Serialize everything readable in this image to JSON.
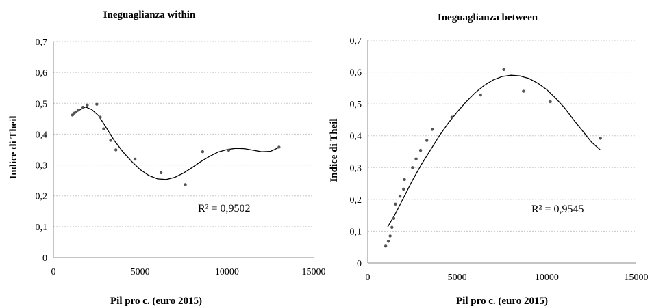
{
  "chart_data": [
    {
      "type": "scatter",
      "title": "Ineguaglianza within",
      "xlabel": "Pil pro c. (euro 2015)",
      "ylabel": "Indice di Theil",
      "xlim": [
        0,
        15000
      ],
      "ylim": [
        0,
        0.7
      ],
      "x_ticks": [
        "0",
        "5000",
        "10000",
        "15000"
      ],
      "y_ticks": [
        "0",
        "0,1",
        "0,2",
        "0,3",
        "0,4",
        "0,5",
        "0,6",
        "0,7"
      ],
      "grid": "horizontal",
      "trendline": "polynomial",
      "annotation": "R² = 0,9502",
      "points": [
        {
          "x": 1100,
          "y": 0.462
        },
        {
          "x": 1200,
          "y": 0.468
        },
        {
          "x": 1300,
          "y": 0.472
        },
        {
          "x": 1450,
          "y": 0.478
        },
        {
          "x": 1700,
          "y": 0.487
        },
        {
          "x": 1950,
          "y": 0.494
        },
        {
          "x": 2500,
          "y": 0.497
        },
        {
          "x": 2700,
          "y": 0.455
        },
        {
          "x": 2900,
          "y": 0.417
        },
        {
          "x": 3300,
          "y": 0.38
        },
        {
          "x": 3600,
          "y": 0.349
        },
        {
          "x": 4700,
          "y": 0.319
        },
        {
          "x": 6200,
          "y": 0.275
        },
        {
          "x": 7600,
          "y": 0.236
        },
        {
          "x": 8600,
          "y": 0.343
        },
        {
          "x": 10100,
          "y": 0.348
        },
        {
          "x": 13000,
          "y": 0.358
        }
      ],
      "fit": [
        {
          "x": 1000,
          "y": 0.46
        },
        {
          "x": 1500,
          "y": 0.478
        },
        {
          "x": 1850,
          "y": 0.488
        },
        {
          "x": 2200,
          "y": 0.48
        },
        {
          "x": 2600,
          "y": 0.46
        },
        {
          "x": 3000,
          "y": 0.425
        },
        {
          "x": 3500,
          "y": 0.38
        },
        {
          "x": 4000,
          "y": 0.343
        },
        {
          "x": 4500,
          "y": 0.312
        },
        {
          "x": 5000,
          "y": 0.285
        },
        {
          "x": 5500,
          "y": 0.266
        },
        {
          "x": 6000,
          "y": 0.255
        },
        {
          "x": 6500,
          "y": 0.253
        },
        {
          "x": 7000,
          "y": 0.26
        },
        {
          "x": 7500,
          "y": 0.274
        },
        {
          "x": 8000,
          "y": 0.292
        },
        {
          "x": 8500,
          "y": 0.311
        },
        {
          "x": 9000,
          "y": 0.328
        },
        {
          "x": 9500,
          "y": 0.342
        },
        {
          "x": 10000,
          "y": 0.35
        },
        {
          "x": 10500,
          "y": 0.354
        },
        {
          "x": 11000,
          "y": 0.353
        },
        {
          "x": 11500,
          "y": 0.348
        },
        {
          "x": 12000,
          "y": 0.343
        },
        {
          "x": 12500,
          "y": 0.344
        },
        {
          "x": 13000,
          "y": 0.357
        }
      ]
    },
    {
      "type": "scatter",
      "title": "Ineguaglianza between",
      "xlabel": "Pil pro c. (euro 2015)",
      "ylabel": "Indice di Theil",
      "xlim": [
        0,
        15000
      ],
      "ylim": [
        0,
        0.7
      ],
      "x_ticks": [
        "0",
        "5000",
        "10000",
        "15000"
      ],
      "y_ticks": [
        "0",
        "0,1",
        "0,2",
        "0,3",
        "0,4",
        "0,5",
        "0,6",
        "0,7"
      ],
      "grid": "horizontal",
      "trendline": "polynomial",
      "annotation": "R² = 0,9545",
      "points": [
        {
          "x": 1000,
          "y": 0.053
        },
        {
          "x": 1150,
          "y": 0.068
        },
        {
          "x": 1250,
          "y": 0.085
        },
        {
          "x": 1350,
          "y": 0.112
        },
        {
          "x": 1450,
          "y": 0.14
        },
        {
          "x": 1550,
          "y": 0.185
        },
        {
          "x": 1800,
          "y": 0.21
        },
        {
          "x": 2000,
          "y": 0.232
        },
        {
          "x": 2050,
          "y": 0.262
        },
        {
          "x": 2500,
          "y": 0.3
        },
        {
          "x": 2700,
          "y": 0.327
        },
        {
          "x": 2950,
          "y": 0.354
        },
        {
          "x": 3300,
          "y": 0.385
        },
        {
          "x": 3600,
          "y": 0.42
        },
        {
          "x": 4700,
          "y": 0.458
        },
        {
          "x": 6300,
          "y": 0.528
        },
        {
          "x": 7600,
          "y": 0.608
        },
        {
          "x": 8700,
          "y": 0.54
        },
        {
          "x": 10200,
          "y": 0.507
        },
        {
          "x": 13000,
          "y": 0.392
        }
      ],
      "fit": [
        {
          "x": 1100,
          "y": 0.112
        },
        {
          "x": 1500,
          "y": 0.15
        },
        {
          "x": 2000,
          "y": 0.205
        },
        {
          "x": 2500,
          "y": 0.26
        },
        {
          "x": 3000,
          "y": 0.31
        },
        {
          "x": 3500,
          "y": 0.355
        },
        {
          "x": 4000,
          "y": 0.4
        },
        {
          "x": 4500,
          "y": 0.44
        },
        {
          "x": 5000,
          "y": 0.475
        },
        {
          "x": 5500,
          "y": 0.507
        },
        {
          "x": 6000,
          "y": 0.535
        },
        {
          "x": 6500,
          "y": 0.558
        },
        {
          "x": 7000,
          "y": 0.575
        },
        {
          "x": 7500,
          "y": 0.586
        },
        {
          "x": 8000,
          "y": 0.59
        },
        {
          "x": 8500,
          "y": 0.588
        },
        {
          "x": 9000,
          "y": 0.58
        },
        {
          "x": 9500,
          "y": 0.565
        },
        {
          "x": 10000,
          "y": 0.545
        },
        {
          "x": 10500,
          "y": 0.518
        },
        {
          "x": 11000,
          "y": 0.487
        },
        {
          "x": 11500,
          "y": 0.45
        },
        {
          "x": 12000,
          "y": 0.415
        },
        {
          "x": 12500,
          "y": 0.38
        },
        {
          "x": 13000,
          "y": 0.355
        }
      ]
    }
  ]
}
